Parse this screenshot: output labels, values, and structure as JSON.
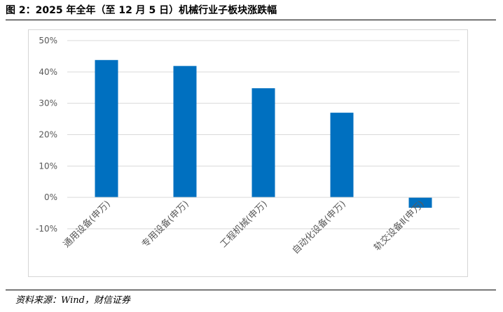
{
  "header": {
    "title": "图 2：2025 年全年（至 12 月 5 日）机械行业子板块涨跌幅"
  },
  "footer": {
    "source": "资料来源：Wind，财信证券"
  },
  "chart_data": {
    "type": "bar",
    "title": "",
    "xlabel": "",
    "ylabel": "",
    "categories": [
      "通用设备(申万)",
      "专用设备(申万)",
      "工程机械(申万)",
      "自动化设备(申万)",
      "轨交设备Ⅱ(申万)"
    ],
    "values": [
      43.8,
      41.9,
      34.8,
      27.0,
      -3.3
    ],
    "ylim": [
      -10,
      50
    ],
    "yticks": [
      -10,
      0,
      10,
      20,
      30,
      40,
      50
    ],
    "tick_format": "percent",
    "grid": true,
    "legend": "none",
    "bar_color": "#0070C0",
    "grid_color": "#d9d9d9"
  }
}
